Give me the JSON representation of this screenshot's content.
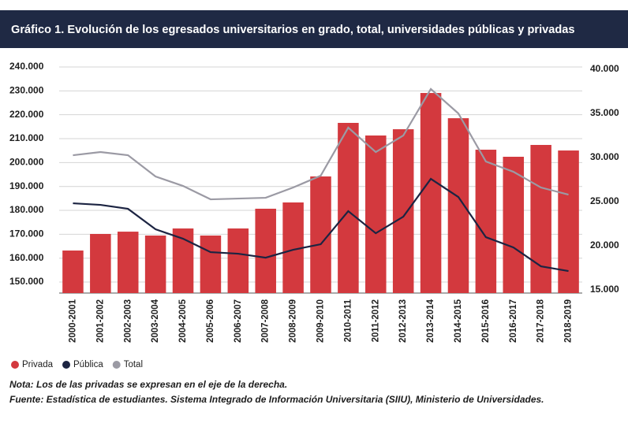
{
  "chart_data": {
    "type": "bar",
    "title": "Gráfico 1. Evolución de los egresados universitarios en grado, total, universidades públicas y privadas",
    "categories": [
      "2000-2001",
      "2001-2002",
      "2002-2003",
      "2003-2004",
      "2004-2005",
      "2005-2006",
      "2006-2007",
      "2007-2008",
      "2008-2009",
      "2009-2010",
      "2010-2011",
      "2011-2012",
      "2012-2013",
      "2013-2014",
      "2014-2015",
      "2015-2016",
      "2016-2017",
      "2017-2018",
      "2018-2019"
    ],
    "series": [
      {
        "name": "Privada",
        "type": "bar",
        "axis": "y2",
        "color": "#d3393e",
        "values": [
          19460,
          21340,
          21600,
          21160,
          21960,
          21160,
          21960,
          24200,
          24910,
          27860,
          33930,
          32500,
          33210,
          37320,
          34460,
          30890,
          30090,
          31430,
          30800
        ]
      },
      {
        "name": "Pública",
        "type": "line",
        "color": "#1c2442",
        "values": [
          182960,
          182300,
          180650,
          172080,
          168120,
          162520,
          161860,
          160210,
          163510,
          165820,
          179670,
          170430,
          177360,
          193180,
          185600,
          168780,
          164500,
          156590,
          154610
        ]
      },
      {
        "name": "Total",
        "type": "line",
        "color": "#9b9aa4",
        "values": [
          203070,
          204390,
          203070,
          194170,
          190210,
          184610,
          184940,
          185270,
          189560,
          194500,
          214610,
          204390,
          211320,
          230770,
          220550,
          200440,
          196150,
          189560,
          186590
        ]
      }
    ],
    "ylim": [
      145400,
      240000
    ],
    "yticks": [
      {
        "value": 150000,
        "label": "150.000"
      },
      {
        "value": 160000,
        "label": "160.000"
      },
      {
        "value": 170000,
        "label": "170.000"
      },
      {
        "value": 180000,
        "label": "180.000"
      },
      {
        "value": 190000,
        "label": "190.000"
      },
      {
        "value": 200000,
        "label": "200.000"
      },
      {
        "value": 210000,
        "label": "210.000"
      },
      {
        "value": 220000,
        "label": "220.000"
      },
      {
        "value": 230000,
        "label": "230.000"
      },
      {
        "value": 240000,
        "label": "240.000"
      }
    ],
    "y2lim": [
      14640,
      40270
    ],
    "y2ticks": [
      {
        "value": 15000,
        "label": "15.000"
      },
      {
        "value": 20000,
        "label": "20.000"
      },
      {
        "value": 25000,
        "label": "25.000"
      },
      {
        "value": 30000,
        "label": "30.000"
      },
      {
        "value": 35000,
        "label": "35.000"
      },
      {
        "value": 40000,
        "label": "40.000"
      }
    ],
    "grid": true,
    "note": "Nota: Los de las privadas se expresan en el eje de la derecha.",
    "source": "Fuente: Estadística de estudiantes. Sistema Integrado de Información Universitaria (SIIU), Ministerio de Universidades."
  }
}
